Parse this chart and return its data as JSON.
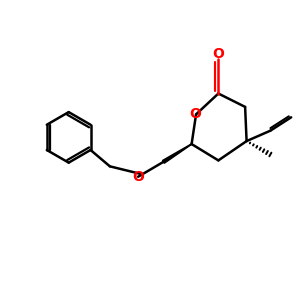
{
  "bg_color": "#ffffff",
  "bond_color": "#000000",
  "oxygen_color": "#ff0000",
  "line_width": 1.8,
  "fig_size": [
    3.0,
    3.0
  ],
  "dpi": 100,
  "xlim": [
    0,
    10
  ],
  "ylim": [
    1,
    9
  ]
}
